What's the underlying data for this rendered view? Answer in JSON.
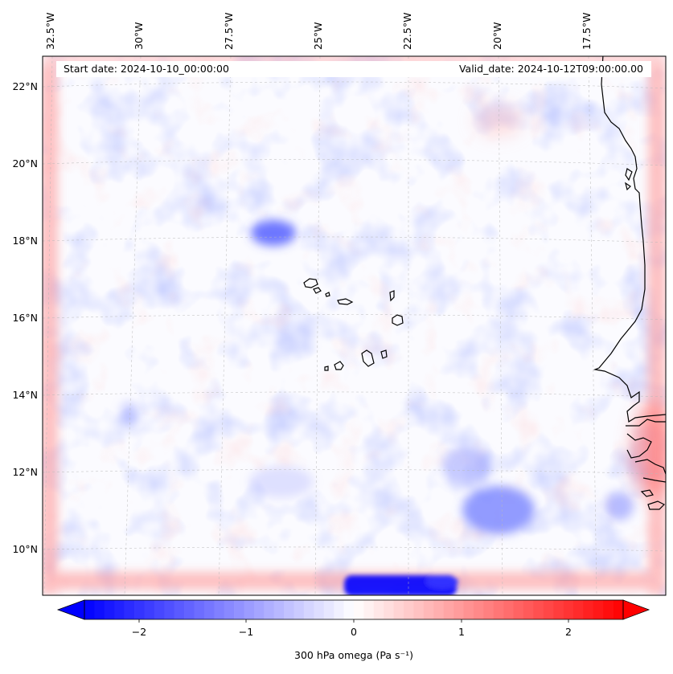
{
  "header": {
    "start_date": "Start date: 2024-10-10_00:00:00",
    "valid_date": "Valid_date: 2024-10-12T09:00:00.00"
  },
  "map": {
    "lon_labels": [
      "32.5°W",
      "30°W",
      "27.5°W",
      "25°W",
      "22.5°W",
      "20°W",
      "17.5°W"
    ],
    "lat_labels": [
      "22°N",
      "20°N",
      "18°N",
      "16°N",
      "14°N",
      "12°N",
      "10°N"
    ],
    "colors": {
      "negative": "#0000ff",
      "positive": "#ff0000",
      "neutral": "#ffffff",
      "coast": "#000000",
      "grid": "#b9b9b9"
    }
  },
  "colorbar": {
    "label": "300 hPa omega (Pa s⁻¹)",
    "ticks": [
      "−2",
      "−1",
      "0",
      "1",
      "2"
    ],
    "range": [
      -2.7,
      2.7
    ]
  }
}
